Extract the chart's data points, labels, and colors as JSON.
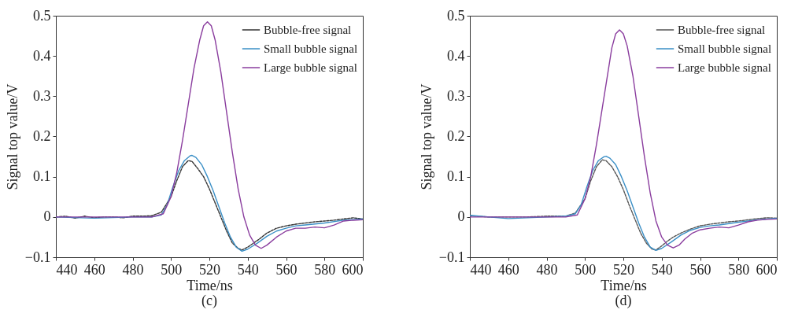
{
  "chart_data": [
    {
      "type": "line",
      "xlabel": "Time/ns",
      "ylabel": "Signal top value/V",
      "annotations": [
        "(c)"
      ],
      "xlim": [
        440,
        600
      ],
      "xticks": [
        440,
        460,
        480,
        500,
        520,
        540,
        560,
        580,
        600
      ],
      "ylim": [
        -0.1,
        0.5
      ],
      "yticks": [
        {
          "value": -0.1,
          "label": "−0.1"
        },
        0,
        0.1,
        0.2,
        0.3,
        0.4,
        0.5
      ],
      "grid": false,
      "legend": "top right",
      "series": [
        {
          "name": "Bubble-free signal",
          "color": "#333333",
          "line_style": "dashed",
          "x": [
            440,
            445,
            450,
            455,
            460,
            465,
            470,
            475,
            480,
            485,
            490,
            495,
            500,
            503,
            506,
            509,
            511,
            514,
            517,
            520,
            523,
            526,
            529,
            532,
            535,
            537,
            540,
            543,
            546,
            550,
            555,
            560,
            565,
            570,
            575,
            580,
            585,
            590,
            595,
            600
          ],
          "values": [
            0,
            0.002,
            -0.003,
            0.002,
            -0.002,
            0,
            0,
            -0.002,
            0.002,
            0.002,
            0.003,
            0.012,
            0.05,
            0.09,
            0.125,
            0.14,
            0.138,
            0.12,
            0.1,
            0.07,
            0.035,
            0,
            -0.035,
            -0.065,
            -0.078,
            -0.082,
            -0.075,
            -0.065,
            -0.055,
            -0.04,
            -0.028,
            -0.022,
            -0.018,
            -0.015,
            -0.012,
            -0.01,
            -0.008,
            -0.005,
            -0.002,
            -0.005
          ]
        },
        {
          "name": "Small bubble signal",
          "color": "#3a8fc6",
          "x": [
            440,
            460,
            480,
            490,
            495,
            498,
            501,
            504,
            507,
            510,
            511,
            513,
            516,
            519,
            522,
            525,
            528,
            531,
            534,
            537,
            540,
            545,
            550,
            555,
            560,
            565,
            570,
            580,
            590,
            600
          ],
          "values": [
            0,
            -0.003,
            0,
            0,
            0.005,
            0.03,
            0.075,
            0.115,
            0.14,
            0.152,
            0.153,
            0.148,
            0.13,
            0.1,
            0.065,
            0.025,
            -0.015,
            -0.05,
            -0.075,
            -0.085,
            -0.08,
            -0.065,
            -0.048,
            -0.035,
            -0.028,
            -0.022,
            -0.02,
            -0.015,
            -0.008,
            -0.005
          ]
        },
        {
          "name": "Large bubble signal",
          "color": "#8a3d9e",
          "x": [
            440,
            470,
            490,
            496,
            500,
            503,
            506,
            509,
            512,
            515,
            517,
            519,
            521,
            523,
            526,
            529,
            532,
            535,
            538,
            541,
            544,
            547,
            550,
            555,
            560,
            565,
            570,
            575,
            580,
            585,
            590,
            595,
            600
          ],
          "values": [
            0,
            0,
            0,
            0.008,
            0.05,
            0.11,
            0.19,
            0.28,
            0.37,
            0.44,
            0.475,
            0.485,
            0.475,
            0.44,
            0.36,
            0.26,
            0.16,
            0.07,
            0,
            -0.045,
            -0.07,
            -0.078,
            -0.07,
            -0.05,
            -0.035,
            -0.028,
            -0.028,
            -0.025,
            -0.027,
            -0.02,
            -0.01,
            -0.008,
            -0.007
          ]
        }
      ]
    },
    {
      "type": "line",
      "xlabel": "Time/ns",
      "ylabel": "Signal top value/V",
      "annotations": [
        "(d)"
      ],
      "xlim": [
        440,
        600
      ],
      "xticks": [
        440,
        460,
        480,
        500,
        520,
        540,
        560,
        580,
        600
      ],
      "ylim": [
        -0.1,
        0.5
      ],
      "yticks": [
        {
          "value": -0.1,
          "label": "−0.1"
        },
        0,
        0.1,
        0.2,
        0.3,
        0.4,
        0.5
      ],
      "grid": false,
      "legend": "top right",
      "series": [
        {
          "name": "Bubble-free signal",
          "color": "#555555",
          "line_style": "dashed",
          "x": [
            440,
            450,
            460,
            470,
            480,
            490,
            495,
            500,
            503,
            506,
            509,
            511,
            514,
            517,
            520,
            523,
            526,
            529,
            532,
            535,
            537,
            540,
            543,
            546,
            550,
            555,
            560,
            565,
            570,
            575,
            580,
            585,
            590,
            595,
            600
          ],
          "values": [
            0.003,
            0,
            0,
            0,
            0.002,
            0.002,
            0.01,
            0.045,
            0.09,
            0.125,
            0.142,
            0.14,
            0.125,
            0.1,
            0.068,
            0.03,
            -0.005,
            -0.04,
            -0.065,
            -0.08,
            -0.082,
            -0.072,
            -0.06,
            -0.05,
            -0.04,
            -0.03,
            -0.022,
            -0.018,
            -0.015,
            -0.012,
            -0.01,
            -0.007,
            -0.004,
            -0.002,
            -0.003
          ]
        },
        {
          "name": "Small bubble signal",
          "color": "#3a8fc6",
          "x": [
            440,
            460,
            480,
            490,
            495,
            498,
            501,
            504,
            507,
            510,
            511,
            513,
            516,
            519,
            522,
            525,
            528,
            531,
            534,
            537,
            540,
            545,
            550,
            555,
            560,
            565,
            570,
            580,
            590,
            600
          ],
          "values": [
            0.004,
            -0.004,
            0,
            0.002,
            0.008,
            0.03,
            0.075,
            0.115,
            0.14,
            0.15,
            0.151,
            0.146,
            0.13,
            0.1,
            0.065,
            0.025,
            -0.015,
            -0.05,
            -0.075,
            -0.083,
            -0.078,
            -0.062,
            -0.045,
            -0.033,
            -0.026,
            -0.022,
            -0.02,
            -0.013,
            -0.007,
            -0.003
          ]
        },
        {
          "name": "Large bubble signal",
          "color": "#8a3d9e",
          "x": [
            440,
            470,
            490,
            496,
            500,
            503,
            506,
            509,
            512,
            514,
            516,
            518,
            520,
            522,
            525,
            528,
            531,
            534,
            537,
            540,
            543,
            546,
            549,
            552,
            556,
            560,
            565,
            570,
            575,
            580,
            585,
            590,
            595,
            600
          ],
          "values": [
            0,
            0,
            0,
            0.005,
            0.045,
            0.1,
            0.18,
            0.27,
            0.36,
            0.42,
            0.455,
            0.465,
            0.455,
            0.425,
            0.35,
            0.25,
            0.15,
            0.06,
            -0.01,
            -0.05,
            -0.07,
            -0.077,
            -0.07,
            -0.055,
            -0.04,
            -0.032,
            -0.028,
            -0.025,
            -0.027,
            -0.02,
            -0.012,
            -0.008,
            -0.006,
            -0.005
          ]
        }
      ]
    }
  ]
}
